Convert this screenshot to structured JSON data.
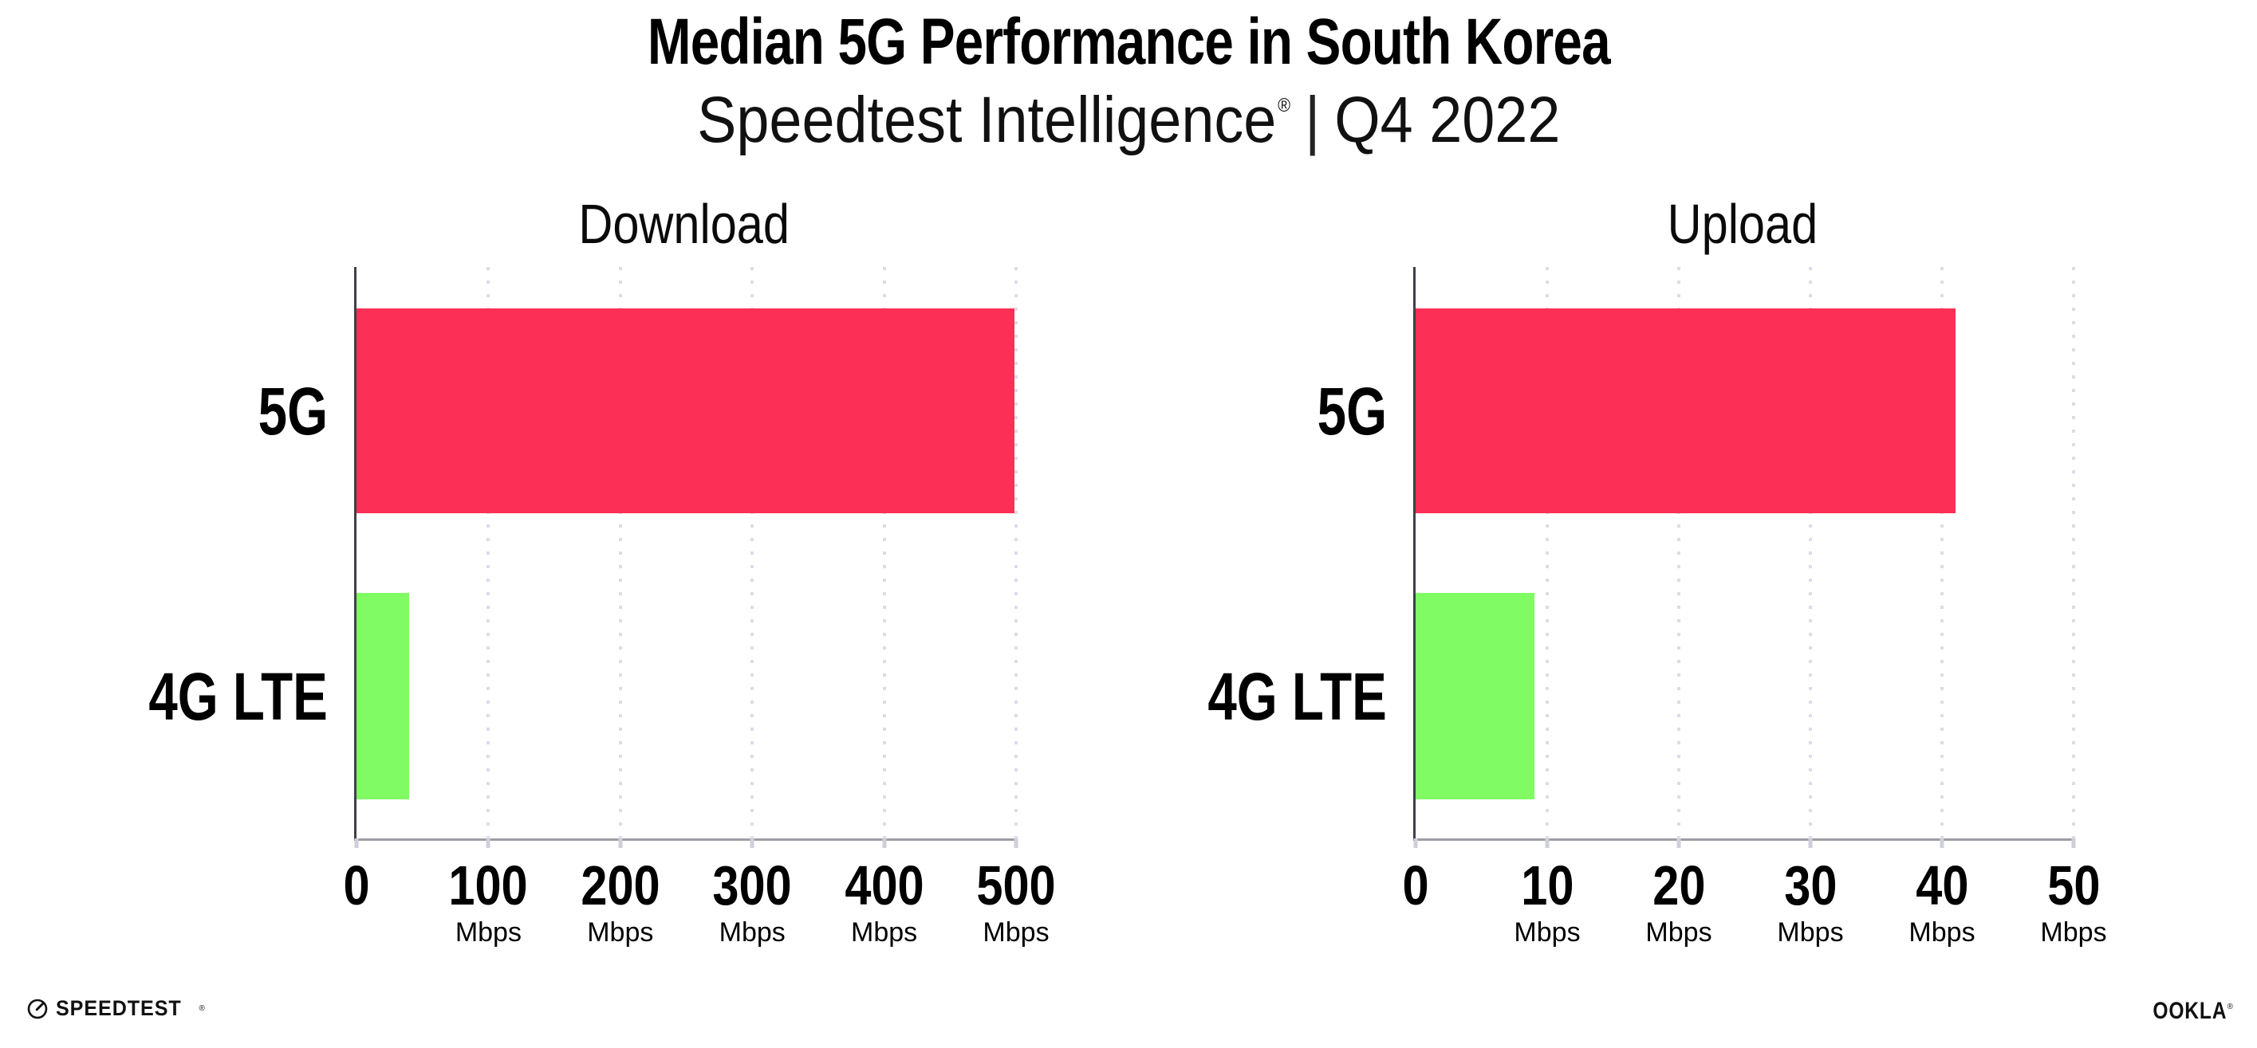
{
  "header": {
    "title": "Median 5G Performance in South Korea",
    "subtitle": {
      "brand": "Speedtest Intelligence",
      "reg": "®",
      "sep": "|",
      "period": "Q4 2022"
    }
  },
  "colors": {
    "bar_5g": "#FC3056",
    "bar_4g_lte": "#80FB64",
    "gridline": "#DCDCE8",
    "axis_left": "#3F3F49",
    "axis_bottom": "#9D9DA5",
    "text": "#000000"
  },
  "chart_data": [
    {
      "type": "bar",
      "orientation": "horizontal",
      "title": "Download",
      "categories": [
        "5G",
        "4G LTE"
      ],
      "values": [
        499,
        40
      ],
      "unit": "Mbps",
      "xlabel": "",
      "ylabel": "",
      "xlim": [
        0,
        500
      ],
      "xticks": [
        0,
        100,
        200,
        300,
        400,
        500
      ],
      "bar_colors": [
        "#FC3056",
        "#80FB64"
      ],
      "grid": "dotted-vertical",
      "legend": "none"
    },
    {
      "type": "bar",
      "orientation": "horizontal",
      "title": "Upload",
      "categories": [
        "5G",
        "4G LTE"
      ],
      "values": [
        41,
        9
      ],
      "unit": "Mbps",
      "xlabel": "",
      "ylabel": "",
      "xlim": [
        0,
        50
      ],
      "xticks": [
        0,
        10,
        20,
        30,
        40,
        50
      ],
      "bar_colors": [
        "#FC3056",
        "#80FB64"
      ],
      "grid": "dotted-vertical",
      "legend": "none"
    }
  ],
  "footer": {
    "speedtest": {
      "text": "SPEEDTEST",
      "mark": "®"
    },
    "ookla": {
      "text": "OOKLA",
      "mark": "®"
    }
  }
}
